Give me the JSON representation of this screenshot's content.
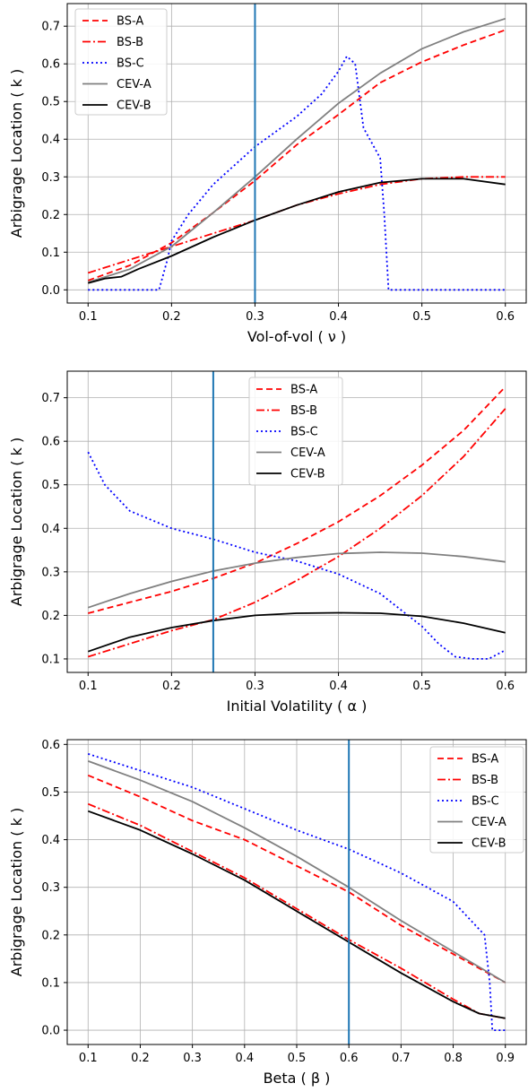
{
  "chart_data": [
    {
      "type": "line",
      "xlabel": "Vol-of-vol ( ν )",
      "ylabel": "Arbigrage Location ( k )",
      "xlim": [
        0.075,
        0.625
      ],
      "ylim": [
        -0.035,
        0.76
      ],
      "xticks": [
        0.1,
        0.2,
        0.3,
        0.4,
        0.5,
        0.6
      ],
      "xtick_labels": [
        "0.1",
        "0.2",
        "0.3",
        "0.4",
        "0.5",
        "0.6"
      ],
      "yticks": [
        0.0,
        0.1,
        0.2,
        0.3,
        0.4,
        0.5,
        0.6,
        0.7
      ],
      "ytick_labels": [
        "0.0",
        "0.1",
        "0.2",
        "0.3",
        "0.4",
        "0.5",
        "0.6",
        "0.7"
      ],
      "vline": 0.3,
      "grid": true,
      "legend_position": "upper-left",
      "series": [
        {
          "name": "BS-A",
          "color": "#ff0000",
          "style": "dashed",
          "x": [
            0.1,
            0.15,
            0.2,
            0.25,
            0.3,
            0.35,
            0.4,
            0.45,
            0.5,
            0.55,
            0.6
          ],
          "y": [
            0.025,
            0.065,
            0.125,
            0.205,
            0.29,
            0.385,
            0.465,
            0.55,
            0.605,
            0.65,
            0.69
          ]
        },
        {
          "name": "BS-B",
          "color": "#ff0000",
          "style": "dashdot",
          "x": [
            0.1,
            0.15,
            0.2,
            0.25,
            0.3,
            0.35,
            0.4,
            0.45,
            0.5,
            0.55,
            0.6
          ],
          "y": [
            0.045,
            0.08,
            0.115,
            0.15,
            0.185,
            0.225,
            0.255,
            0.28,
            0.295,
            0.3,
            0.3
          ]
        },
        {
          "name": "BS-C",
          "color": "#0000ff",
          "style": "dotted",
          "x": [
            0.1,
            0.185,
            0.195,
            0.2,
            0.22,
            0.25,
            0.3,
            0.35,
            0.38,
            0.4,
            0.41,
            0.42,
            0.43,
            0.45,
            0.455,
            0.46,
            0.5,
            0.6
          ],
          "y": [
            0.0,
            0.0,
            0.08,
            0.13,
            0.2,
            0.28,
            0.38,
            0.46,
            0.52,
            0.58,
            0.62,
            0.6,
            0.43,
            0.35,
            0.2,
            0.0,
            0.0,
            0.0
          ]
        },
        {
          "name": "CEV-A",
          "color": "#808080",
          "style": "solid",
          "x": [
            0.1,
            0.15,
            0.2,
            0.25,
            0.3,
            0.35,
            0.4,
            0.45,
            0.5,
            0.55,
            0.6
          ],
          "y": [
            0.02,
            0.055,
            0.115,
            0.205,
            0.3,
            0.4,
            0.495,
            0.575,
            0.64,
            0.685,
            0.72
          ]
        },
        {
          "name": "CEV-B",
          "color": "#000000",
          "style": "solid",
          "x": [
            0.1,
            0.12,
            0.14,
            0.16,
            0.2,
            0.25,
            0.3,
            0.35,
            0.4,
            0.45,
            0.5,
            0.55,
            0.6
          ],
          "y": [
            0.018,
            0.03,
            0.035,
            0.055,
            0.09,
            0.14,
            0.185,
            0.225,
            0.26,
            0.285,
            0.295,
            0.295,
            0.28
          ]
        }
      ]
    },
    {
      "type": "line",
      "xlabel": "Initial Volatility ( α )",
      "ylabel": "Arbigrage Location ( k )",
      "xlim": [
        0.075,
        0.625
      ],
      "ylim": [
        0.069,
        0.761
      ],
      "xticks": [
        0.1,
        0.2,
        0.3,
        0.4,
        0.5,
        0.6
      ],
      "xtick_labels": [
        "0.1",
        "0.2",
        "0.3",
        "0.4",
        "0.5",
        "0.6"
      ],
      "yticks": [
        0.1,
        0.2,
        0.3,
        0.4,
        0.5,
        0.6,
        0.7
      ],
      "ytick_labels": [
        "0.1",
        "0.2",
        "0.3",
        "0.4",
        "0.5",
        "0.6",
        "0.7"
      ],
      "vline": 0.25,
      "grid": true,
      "legend_position": "upper-center",
      "series": [
        {
          "name": "BS-A",
          "color": "#ff0000",
          "style": "dashed",
          "x": [
            0.1,
            0.15,
            0.2,
            0.25,
            0.3,
            0.35,
            0.4,
            0.45,
            0.5,
            0.55,
            0.6
          ],
          "y": [
            0.205,
            0.23,
            0.255,
            0.285,
            0.32,
            0.365,
            0.415,
            0.475,
            0.545,
            0.625,
            0.725
          ]
        },
        {
          "name": "BS-B",
          "color": "#ff0000",
          "style": "dashdot",
          "x": [
            0.1,
            0.15,
            0.2,
            0.25,
            0.3,
            0.35,
            0.4,
            0.45,
            0.5,
            0.55,
            0.6
          ],
          "y": [
            0.105,
            0.135,
            0.165,
            0.19,
            0.23,
            0.28,
            0.335,
            0.4,
            0.475,
            0.565,
            0.675
          ]
        },
        {
          "name": "BS-C",
          "color": "#0000ff",
          "style": "dotted",
          "x": [
            0.1,
            0.12,
            0.15,
            0.2,
            0.25,
            0.3,
            0.35,
            0.4,
            0.45,
            0.48,
            0.5,
            0.52,
            0.54,
            0.56,
            0.58,
            0.6
          ],
          "y": [
            0.575,
            0.5,
            0.44,
            0.4,
            0.375,
            0.345,
            0.325,
            0.295,
            0.25,
            0.205,
            0.175,
            0.135,
            0.105,
            0.1,
            0.1,
            0.12
          ]
        },
        {
          "name": "CEV-A",
          "color": "#808080",
          "style": "solid",
          "x": [
            0.1,
            0.15,
            0.2,
            0.25,
            0.3,
            0.35,
            0.4,
            0.45,
            0.5,
            0.55,
            0.6
          ],
          "y": [
            0.218,
            0.25,
            0.278,
            0.302,
            0.32,
            0.333,
            0.342,
            0.345,
            0.343,
            0.335,
            0.323
          ]
        },
        {
          "name": "CEV-B",
          "color": "#000000",
          "style": "solid",
          "x": [
            0.1,
            0.15,
            0.2,
            0.25,
            0.3,
            0.35,
            0.4,
            0.45,
            0.5,
            0.55,
            0.6
          ],
          "y": [
            0.117,
            0.15,
            0.172,
            0.188,
            0.2,
            0.205,
            0.206,
            0.205,
            0.198,
            0.182,
            0.16
          ]
        }
      ]
    },
    {
      "type": "line",
      "xlabel": "Beta ( β )",
      "ylabel": "Arbigrage Location ( k )",
      "xlim": [
        0.06,
        0.94
      ],
      "ylim": [
        -0.03,
        0.61
      ],
      "xticks": [
        0.1,
        0.2,
        0.3,
        0.4,
        0.5,
        0.6,
        0.7,
        0.8,
        0.9
      ],
      "xtick_labels": [
        "0.1",
        "0.2",
        "0.3",
        "0.4",
        "0.5",
        "0.6",
        "0.7",
        "0.8",
        "0.9"
      ],
      "yticks": [
        0.0,
        0.1,
        0.2,
        0.3,
        0.4,
        0.5,
        0.6
      ],
      "ytick_labels": [
        "0.0",
        "0.1",
        "0.2",
        "0.3",
        "0.4",
        "0.5",
        "0.6"
      ],
      "vline": 0.6,
      "grid": true,
      "legend_position": "upper-right",
      "series": [
        {
          "name": "BS-A",
          "color": "#ff0000",
          "style": "dashed",
          "x": [
            0.1,
            0.2,
            0.3,
            0.4,
            0.5,
            0.6,
            0.7,
            0.8,
            0.9
          ],
          "y": [
            0.535,
            0.49,
            0.44,
            0.4,
            0.345,
            0.29,
            0.22,
            0.16,
            0.1
          ]
        },
        {
          "name": "BS-B",
          "color": "#ff0000",
          "style": "dashdot",
          "x": [
            0.1,
            0.2,
            0.3,
            0.4,
            0.5,
            0.6,
            0.7,
            0.8,
            0.85,
            0.9
          ],
          "y": [
            0.475,
            0.43,
            0.375,
            0.32,
            0.255,
            0.19,
            0.13,
            0.065,
            0.035,
            0.025
          ]
        },
        {
          "name": "BS-C",
          "color": "#0000ff",
          "style": "dotted",
          "x": [
            0.1,
            0.2,
            0.3,
            0.4,
            0.5,
            0.6,
            0.7,
            0.8,
            0.86,
            0.87,
            0.875,
            0.9
          ],
          "y": [
            0.58,
            0.545,
            0.51,
            0.465,
            0.42,
            0.38,
            0.33,
            0.27,
            0.2,
            0.1,
            0.0,
            0.0
          ]
        },
        {
          "name": "CEV-A",
          "color": "#808080",
          "style": "solid",
          "x": [
            0.1,
            0.2,
            0.3,
            0.4,
            0.5,
            0.6,
            0.7,
            0.8,
            0.9
          ],
          "y": [
            0.565,
            0.525,
            0.48,
            0.425,
            0.365,
            0.3,
            0.23,
            0.165,
            0.1
          ]
        },
        {
          "name": "CEV-B",
          "color": "#000000",
          "style": "solid",
          "x": [
            0.1,
            0.2,
            0.3,
            0.4,
            0.5,
            0.6,
            0.7,
            0.8,
            0.85,
            0.9
          ],
          "y": [
            0.46,
            0.42,
            0.37,
            0.315,
            0.25,
            0.185,
            0.12,
            0.06,
            0.035,
            0.025
          ]
        }
      ]
    }
  ]
}
